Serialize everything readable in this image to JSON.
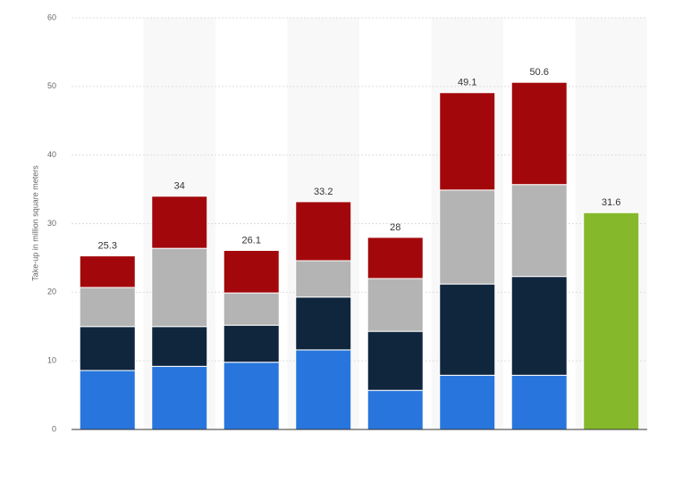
{
  "chart_data": {
    "type": "stacked-bar",
    "y_label": "Take-up in million square meters",
    "categories": [
      null,
      null,
      null,
      null,
      null,
      null,
      null,
      null
    ],
    "series": [
      {
        "color": "#2876dd",
        "values": [
          8.6,
          9.2,
          9.8,
          11.6,
          5.7,
          7.9,
          7.9,
          null
        ]
      },
      {
        "color": "#10263d",
        "values": [
          6.4,
          5.8,
          5.4,
          7.7,
          8.6,
          13.3,
          14.4,
          null
        ]
      },
      {
        "color": "#b4b4b4",
        "values": [
          5.7,
          11.4,
          4.7,
          5.3,
          7.7,
          13.7,
          13.4,
          null
        ]
      },
      {
        "color": "#a2080b",
        "values": [
          4.6,
          7.6,
          6.2,
          8.6,
          6.0,
          14.2,
          14.9,
          null
        ]
      },
      {
        "color": "#85b82a",
        "values": [
          null,
          null,
          null,
          null,
          null,
          null,
          null,
          31.6
        ]
      }
    ],
    "totals": [
      25.3,
      34,
      26.1,
      33.2,
      28,
      49.1,
      50.6,
      31.6
    ],
    "ylim": [
      0,
      60
    ],
    "yticks": [
      0,
      10,
      20,
      30,
      40,
      50,
      60
    ],
    "grid": true
  }
}
